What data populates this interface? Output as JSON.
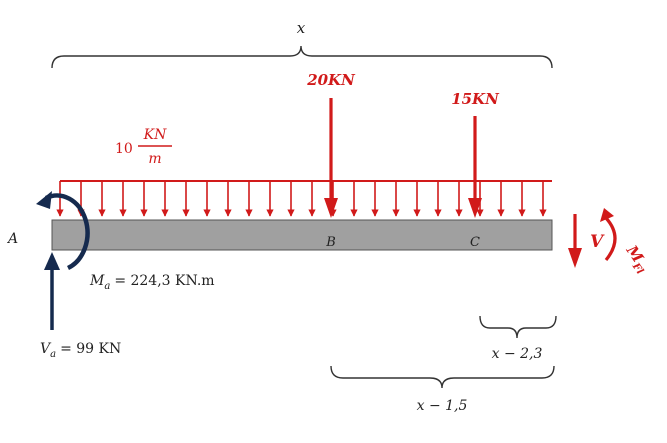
{
  "span_label": "x",
  "distributed_load": {
    "value": "10",
    "numerator": "KN",
    "denominator": "m"
  },
  "point_load_b": "20KN",
  "point_load_c": "15KN",
  "point_a": "A",
  "point_b": "B",
  "point_c": "C",
  "moment_reaction": "M",
  "moment_reaction_sub": "a",
  "moment_reaction_value": "= 224,3 KN.m",
  "vertical_reaction": "V",
  "vertical_reaction_sub": "a",
  "vertical_reaction_value": "= 99 KN",
  "internal_shear": "V",
  "internal_moment": "M",
  "internal_moment_sub": "Fl",
  "dim_c": "x − 2,3",
  "dim_b": "x − 1,5",
  "colors": {
    "load": "#d11a1a",
    "reaction": "#152a4e",
    "beam": "#a0a0a0",
    "ink": "#222222"
  }
}
